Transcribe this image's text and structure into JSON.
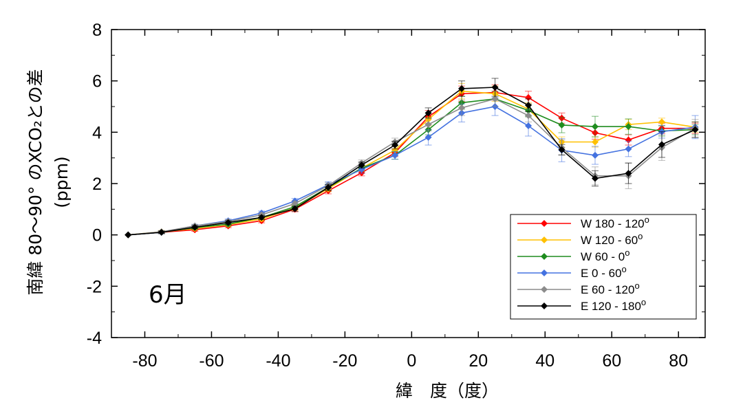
{
  "chart_data": {
    "type": "line",
    "title": "",
    "xlabel": "緯　度（度）",
    "ylabel": "南緯 80～90° のXCO₂との差",
    "ylabel_unit": "(ppm)",
    "annotation": "6月",
    "xlim": [
      -90,
      88
    ],
    "ylim": [
      -4,
      8
    ],
    "xticks": [
      -80,
      -60,
      -40,
      -20,
      0,
      20,
      40,
      60,
      80
    ],
    "yticks": [
      -4,
      -2,
      0,
      2,
      4,
      6,
      8
    ],
    "grid": false,
    "legend_position": "bottom-right",
    "x": [
      -85,
      -75,
      -65,
      -55,
      -45,
      -35,
      -25,
      -15,
      -5,
      5,
      15,
      25,
      35,
      45,
      55,
      65,
      75,
      85
    ],
    "series": [
      {
        "name": "W 180 - 120",
        "name_sup": "o",
        "color": "#ff0000",
        "values": [
          0,
          0.1,
          0.2,
          0.35,
          0.55,
          1.0,
          1.72,
          2.42,
          3.2,
          4.6,
          5.5,
          5.55,
          5.35,
          4.55,
          3.98,
          3.7,
          4.15,
          4.15
        ],
        "errors": [
          0,
          0.05,
          0.06,
          0.07,
          0.08,
          0.1,
          0.12,
          0.12,
          0.15,
          0.25,
          0.3,
          0.3,
          0.25,
          0.2,
          0.25,
          0.2,
          0.2,
          0.2
        ]
      },
      {
        "name": "W 120 - 60",
        "name_sup": "o",
        "color": "#ffc000",
        "values": [
          0,
          0.12,
          0.25,
          0.4,
          0.62,
          1.05,
          1.8,
          2.6,
          3.3,
          4.5,
          5.6,
          5.5,
          4.9,
          3.62,
          3.62,
          4.3,
          4.4,
          4.2
        ],
        "errors": [
          0,
          0.05,
          0.06,
          0.07,
          0.08,
          0.1,
          0.12,
          0.12,
          0.15,
          0.25,
          0.3,
          0.3,
          0.25,
          0.2,
          0.2,
          0.2,
          0.15,
          0.2
        ]
      },
      {
        "name": "W 60 - 0",
        "name_sup": "o",
        "color": "#1e8c1e",
        "values": [
          0,
          0.1,
          0.28,
          0.42,
          0.68,
          1.1,
          1.85,
          2.6,
          3.1,
          4.1,
          5.15,
          5.3,
          4.85,
          4.28,
          4.22,
          4.22,
          4.05,
          4.1
        ],
        "errors": [
          0,
          0.05,
          0.06,
          0.07,
          0.08,
          0.1,
          0.12,
          0.12,
          0.15,
          0.2,
          0.25,
          0.3,
          0.25,
          0.3,
          0.4,
          0.3,
          0.2,
          0.2
        ]
      },
      {
        "name": "E 0 - 60",
        "name_sup": "o",
        "color": "#4472e0",
        "values": [
          0,
          0.1,
          0.35,
          0.55,
          0.85,
          1.32,
          1.95,
          2.55,
          3.1,
          3.8,
          4.75,
          5.0,
          4.25,
          3.3,
          3.1,
          3.35,
          4.02,
          4.2
        ],
        "errors": [
          0,
          0.05,
          0.06,
          0.07,
          0.08,
          0.1,
          0.12,
          0.15,
          0.15,
          0.3,
          0.35,
          0.35,
          0.4,
          0.45,
          0.35,
          0.3,
          0.25,
          0.45
        ]
      },
      {
        "name": "E 60 - 120",
        "name_sup": "o",
        "color": "#8c8c8c",
        "values": [
          0,
          0.12,
          0.35,
          0.52,
          0.78,
          1.22,
          1.92,
          2.8,
          3.62,
          4.3,
          4.95,
          5.3,
          4.65,
          3.4,
          2.3,
          2.3,
          3.4,
          4.15
        ],
        "errors": [
          0,
          0.05,
          0.06,
          0.07,
          0.08,
          0.1,
          0.12,
          0.12,
          0.15,
          0.25,
          0.3,
          0.3,
          0.25,
          0.3,
          0.35,
          0.5,
          0.5,
          0.35
        ]
      },
      {
        "name": "E 120 - 180",
        "name_sup": "o",
        "color": "#000000",
        "values": [
          0,
          0.1,
          0.3,
          0.48,
          0.68,
          1.02,
          1.85,
          2.72,
          3.5,
          4.75,
          5.7,
          5.75,
          5.05,
          3.32,
          2.2,
          2.4,
          3.52,
          4.1
        ],
        "errors": [
          0,
          0.05,
          0.06,
          0.07,
          0.08,
          0.1,
          0.12,
          0.12,
          0.15,
          0.2,
          0.3,
          0.35,
          0.25,
          0.2,
          0.3,
          0.4,
          0.5,
          0.3
        ]
      }
    ]
  }
}
